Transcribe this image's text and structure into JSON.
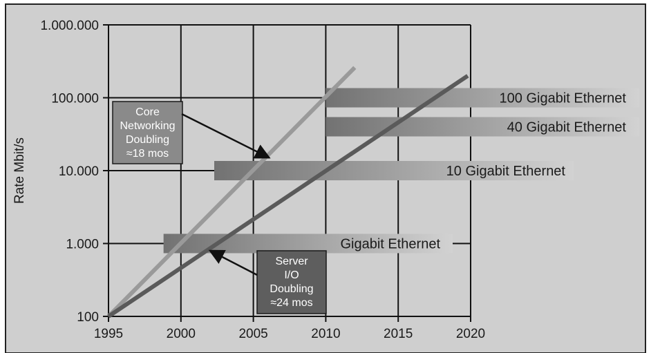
{
  "chart_data": {
    "type": "line",
    "title": "",
    "xlabel": "",
    "ylabel": "Rate Mbit/s",
    "y_scale": "log",
    "xlim": [
      1995,
      2020
    ],
    "ylim": [
      100,
      1000000
    ],
    "x_ticks": [
      "1995",
      "2000",
      "2005",
      "2010",
      "2015",
      "2020"
    ],
    "y_ticks": [
      {
        "value": 100,
        "label": "100"
      },
      {
        "value": 1000,
        "label": "1.000"
      },
      {
        "value": 10000,
        "label": "10.000"
      },
      {
        "value": 100000,
        "label": "100.000"
      },
      {
        "value": 1000000,
        "label": "1.000.000"
      }
    ],
    "grid": true,
    "colors": {
      "background": "#cfcfcf",
      "core_line": "#9a9a9a",
      "server_line": "#5a5a5a",
      "annotation_core": "#8a8a8a",
      "annotation_server": "#5e5e5e"
    },
    "series": [
      {
        "key": "core",
        "x": [
          1995,
          2012
        ],
        "y": [
          100,
          260000
        ]
      },
      {
        "key": "server",
        "x": [
          1995,
          2019.8
        ],
        "y": [
          100,
          200000
        ]
      }
    ],
    "bands": [
      {
        "label": "100 Gigabit Ethernet",
        "x_start": 2010,
        "value": 100000
      },
      {
        "label": "40 Gigabit Ethernet",
        "x_start": 2010,
        "value": 40000
      },
      {
        "label": "10 Gigabit Ethernet",
        "x_start": 2002.3,
        "value": 10000
      },
      {
        "label": "Gigabit Ethernet",
        "x_start": 1998.8,
        "value": 1000
      }
    ],
    "annotations": [
      {
        "key": "core",
        "lines": [
          "Core",
          "Networking",
          "Doubling",
          "≈18 mos"
        ],
        "arrow_to": {
          "x": 2006.1,
          "y": 15000
        }
      },
      {
        "key": "server",
        "lines": [
          "Server",
          "I/O",
          "Doubling",
          "≈24 mos"
        ],
        "arrow_to": {
          "x": 2002,
          "y": 800
        }
      }
    ]
  }
}
